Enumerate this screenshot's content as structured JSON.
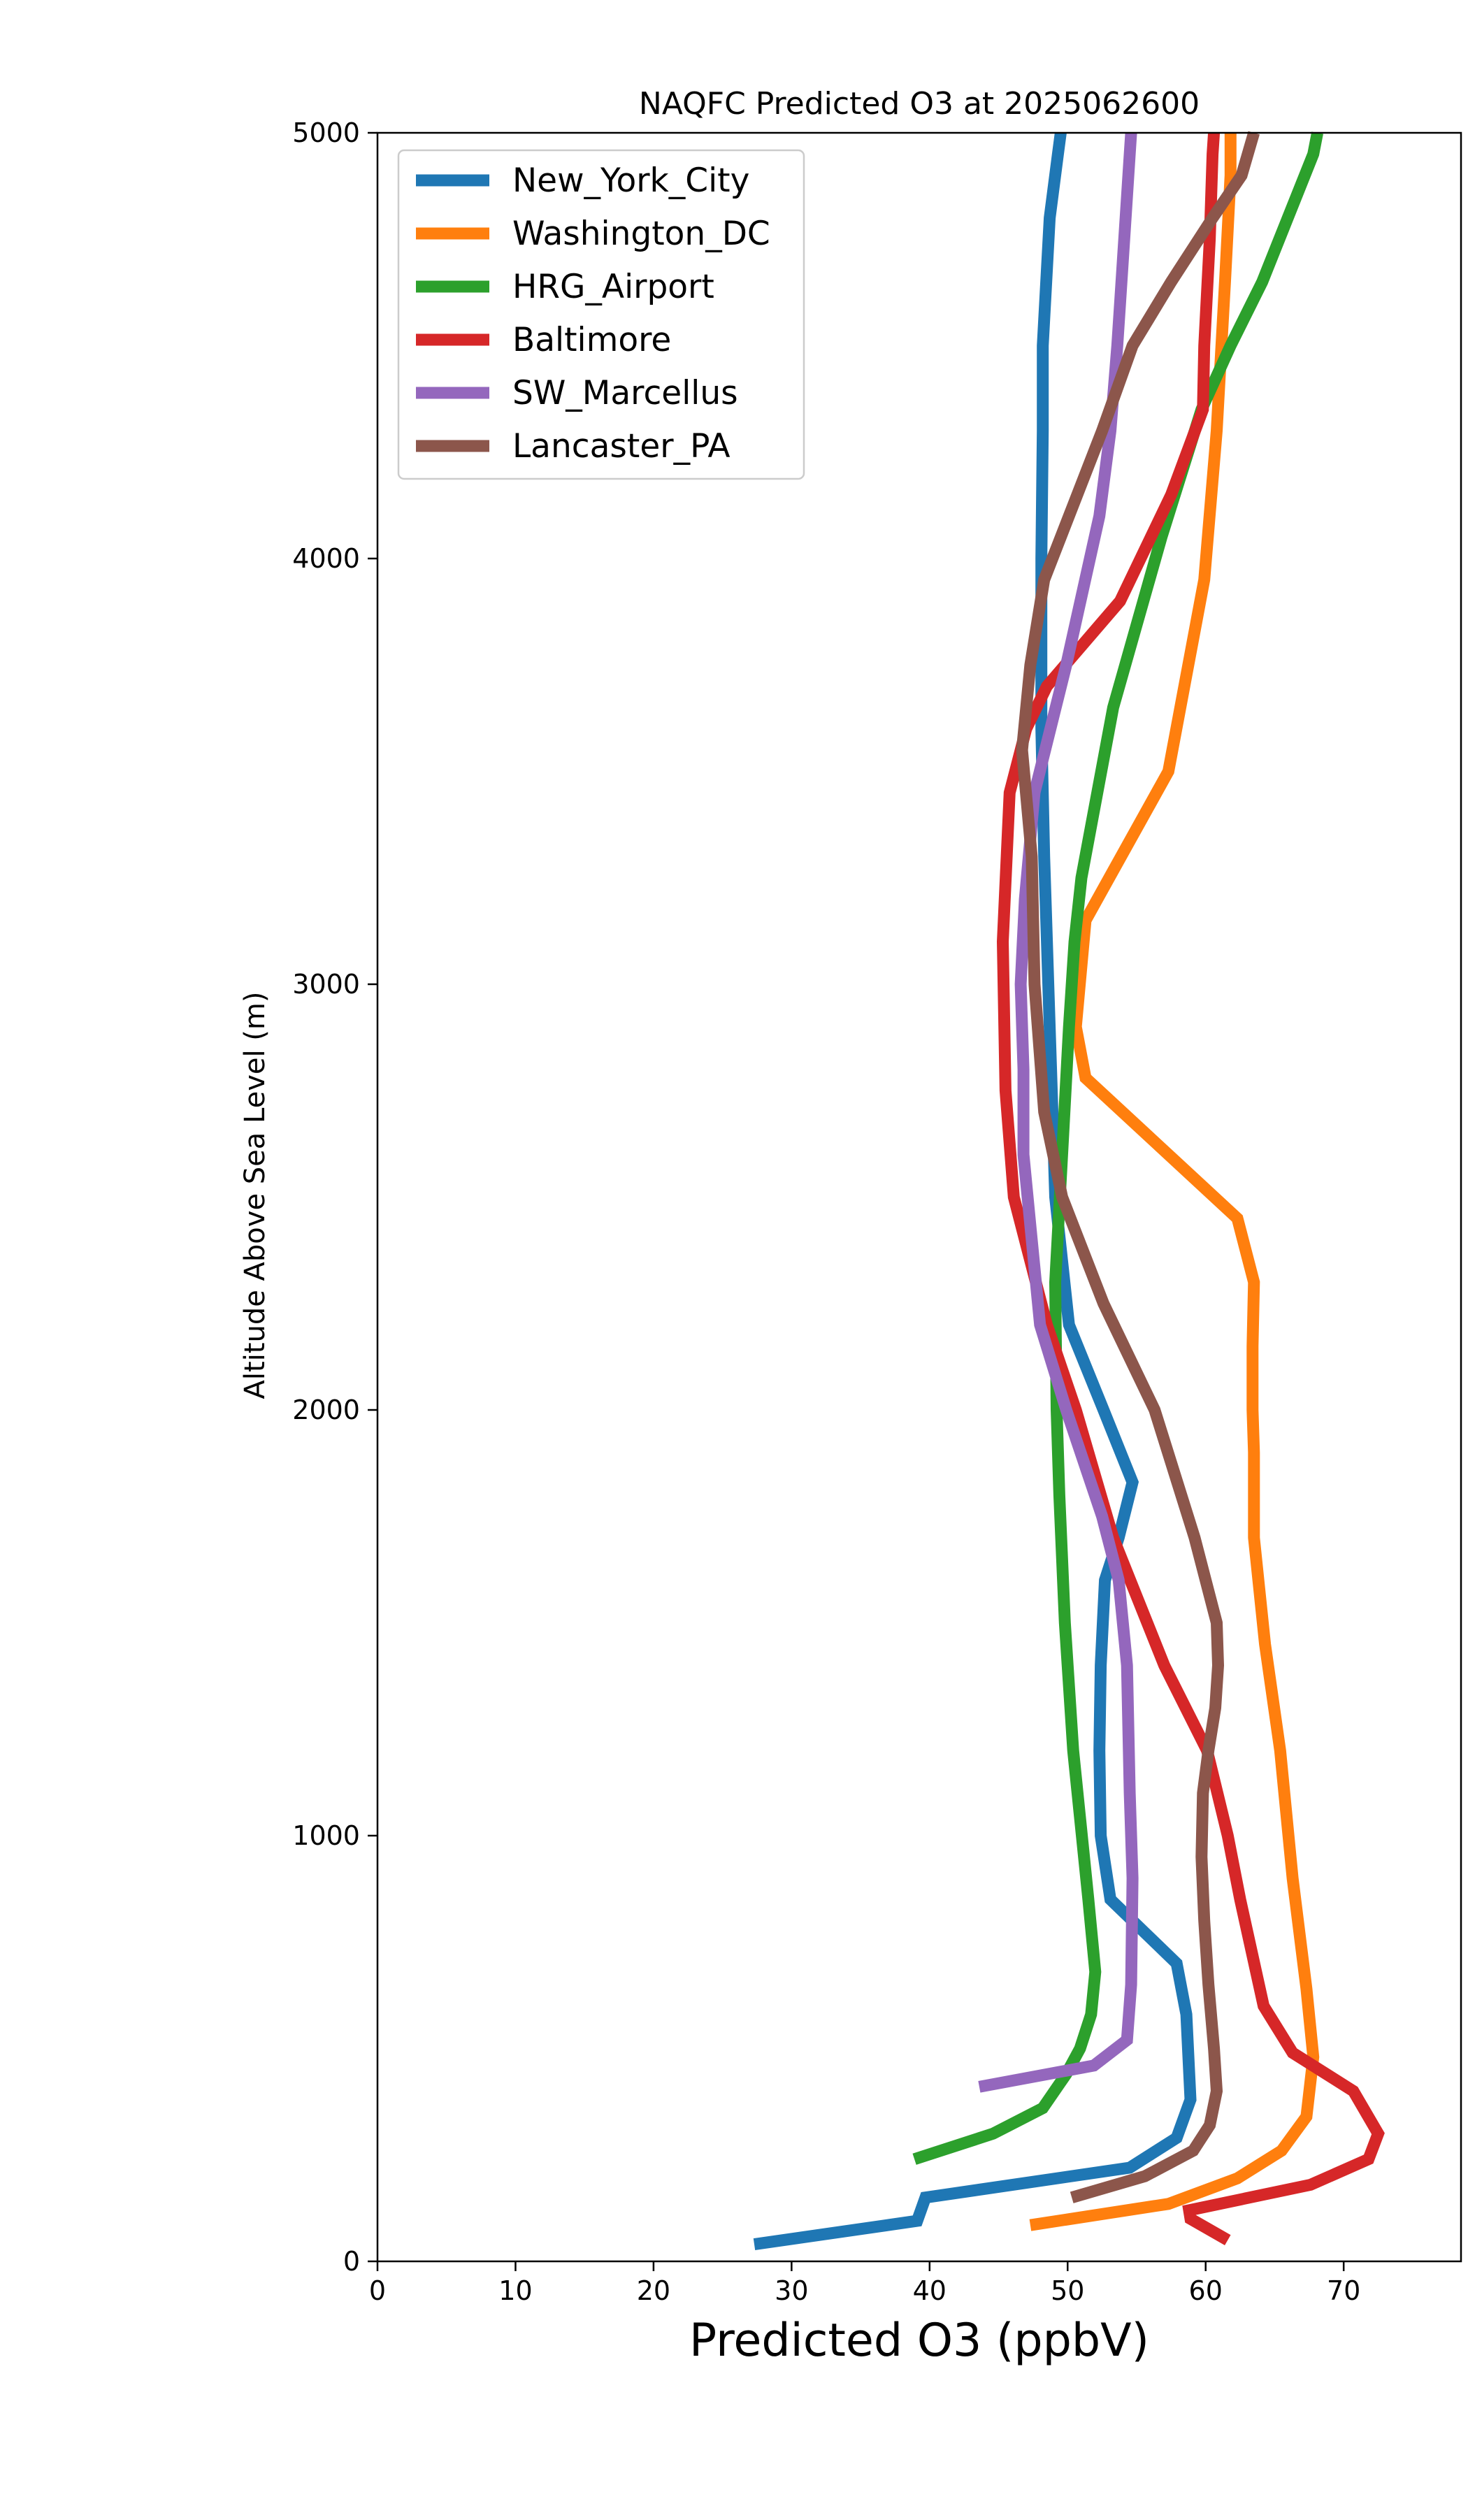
{
  "chart_data": {
    "type": "line",
    "title": "NAQFC Predicted O3 at 2025062600",
    "xlabel": "Predicted O3 (ppbV)",
    "ylabel": "Altitude Above Sea Level (m)",
    "xlim": [
      0,
      78.5
    ],
    "ylim": [
      0,
      5000
    ],
    "xticks": [
      0,
      10,
      20,
      30,
      40,
      50,
      60,
      70
    ],
    "yticks": [
      0,
      1000,
      2000,
      3000,
      4000,
      5000
    ],
    "grid": false,
    "legend_position": "upper-left",
    "series": [
      {
        "name": "New_York_City",
        "color": "#1f77b4",
        "x": [
          27.3,
          39.1,
          39.7,
          54.5,
          57.9,
          58.9,
          58.6,
          57.9,
          53.1,
          52.4,
          52.3,
          52.4,
          52.7,
          53.7,
          54.7,
          52.6,
          50.1,
          49.1,
          48.6,
          48.3,
          48.1,
          48.1,
          48.2,
          48.2,
          48.7,
          49.3,
          49.5
        ],
        "y": [
          40,
          95,
          150,
          220,
          290,
          380,
          580,
          700,
          850,
          1000,
          1200,
          1400,
          1600,
          1700,
          1830,
          2000,
          2200,
          2500,
          3000,
          3300,
          3600,
          4000,
          4300,
          4500,
          4800,
          4950,
          5000
        ]
      },
      {
        "name": "Washington_DC",
        "color": "#ff7f0e",
        "x": [
          47.3,
          57.3,
          62.3,
          65.5,
          67.3,
          67.8,
          67.3,
          66.3,
          65.4,
          64.3,
          63.5,
          63.5,
          63.4,
          63.4,
          63.5,
          62.3,
          51.3,
          50.6,
          51.3,
          57.3,
          59.9,
          60.8,
          61.4,
          61.8,
          61.8
        ],
        "y": [
          85,
          135,
          195,
          260,
          340,
          480,
          640,
          900,
          1200,
          1450,
          1700,
          1900,
          2000,
          2150,
          2300,
          2450,
          2780,
          2900,
          3150,
          3500,
          3950,
          4300,
          4650,
          4900,
          5000
        ]
      },
      {
        "name": "HRG_Airport",
        "color": "#2ca02c",
        "x": [
          38.9,
          44.6,
          48.2,
          49.9,
          50.9,
          51.7,
          52.0,
          51.5,
          50.4,
          49.8,
          49.4,
          49.2,
          49.1,
          49.6,
          50.1,
          50.5,
          51.0,
          53.3,
          56.8,
          59.7,
          61.8,
          64.1,
          67.8,
          68.1
        ],
        "y": [
          240,
          300,
          360,
          440,
          500,
          580,
          680,
          850,
          1200,
          1500,
          1800,
          2000,
          2300,
          2600,
          2900,
          3100,
          3250,
          3650,
          4050,
          4350,
          4500,
          4650,
          4950,
          5000
        ]
      },
      {
        "name": "Baltimore",
        "color": "#d62728",
        "x": [
          61.6,
          58.9,
          58.8,
          67.6,
          71.8,
          72.5,
          70.7,
          66.3,
          64.2,
          62.5,
          61.6,
          60.1,
          57.0,
          53.3,
          50.6,
          48.5,
          46.1,
          45.5,
          45.3,
          45.8,
          47.0,
          48.5,
          53.8,
          57.5,
          59.8,
          59.9,
          60.3,
          60.5,
          60.6
        ],
        "y": [
          50,
          100,
          120,
          180,
          240,
          300,
          400,
          490,
          600,
          850,
          1000,
          1200,
          1400,
          1700,
          2000,
          2200,
          2500,
          2750,
          3100,
          3450,
          3600,
          3700,
          3900,
          4150,
          4350,
          4500,
          4750,
          4950,
          5000
        ]
      },
      {
        "name": "SW_Marcellus",
        "color": "#9467bd",
        "x": [
          43.6,
          51.9,
          54.3,
          54.6,
          54.7,
          54.5,
          54.3,
          53.7,
          52.5,
          49.9,
          48.0,
          47.4,
          46.8,
          46.8,
          46.6,
          46.9,
          47.6,
          49.9,
          52.3,
          53.1,
          53.6,
          53.8,
          54.2,
          54.5,
          54.6
        ],
        "y": [
          410,
          460,
          520,
          650,
          900,
          1100,
          1400,
          1600,
          1750,
          2000,
          2200,
          2400,
          2600,
          2800,
          3000,
          3200,
          3450,
          3750,
          4100,
          4300,
          4500,
          4600,
          4800,
          4950,
          5000
        ]
      },
      {
        "name": "Lancaster_PA",
        "color": "#8c564b",
        "x": [
          50.3,
          55.6,
          59.1,
          60.3,
          60.8,
          60.6,
          60.2,
          59.9,
          59.7,
          59.8,
          60.2,
          60.7,
          60.9,
          60.8,
          59.2,
          56.3,
          52.6,
          49.6,
          48.3,
          47.6,
          47.4,
          46.7,
          47.3,
          48.3,
          52.5,
          54.7,
          57.5,
          60.5,
          62.6,
          63.5
        ],
        "y": [
          150,
          200,
          260,
          320,
          400,
          500,
          650,
          800,
          950,
          1100,
          1200,
          1300,
          1400,
          1500,
          1700,
          2000,
          2250,
          2500,
          2700,
          3000,
          3300,
          3550,
          3750,
          3950,
          4300,
          4500,
          4650,
          4800,
          4900,
          5000
        ]
      }
    ]
  }
}
